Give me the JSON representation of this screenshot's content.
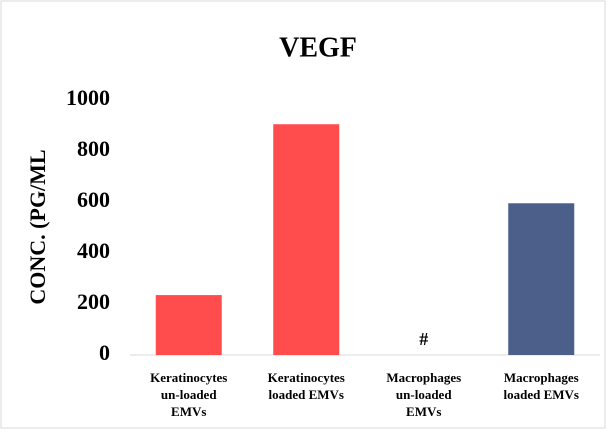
{
  "chart_data": {
    "type": "bar",
    "title": "VEGF",
    "y_label": "CONC. (PG/ML",
    "categories": [
      [
        "Keratinocytes",
        "un-loaded",
        "EMVs"
      ],
      [
        "Keratinocytes",
        "loaded EMVs"
      ],
      [
        "Macrophages",
        "un-loaded",
        "EMVs"
      ],
      [
        "Macrophages",
        "loaded EMVs"
      ]
    ],
    "values": [
      235,
      905,
      null,
      595
    ],
    "value_labels": [
      null,
      null,
      "#",
      null
    ],
    "colors": [
      "#ff4d4d",
      "#ff4d4d",
      "#ff4d4d",
      "#4b5f8a"
    ],
    "ylim": [
      0,
      1000
    ],
    "yticks": [
      0,
      200,
      400,
      600,
      800,
      1000
    ],
    "grid": false
  }
}
